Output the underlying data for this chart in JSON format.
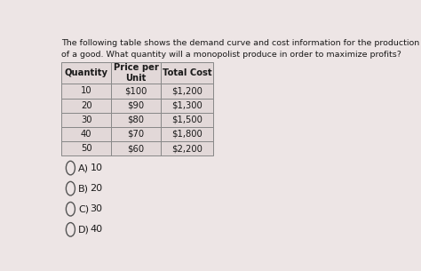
{
  "title_line1": "The following table shows the demand curve and cost information for the production",
  "title_line2": "of a good. What quantity will a monopolist produce in order to maximize profits?",
  "col_headers": [
    "Quantity",
    "Price per\nUnit",
    "Total Cost"
  ],
  "table_data": [
    [
      "10",
      "$100",
      "$1,200"
    ],
    [
      "20",
      "$90",
      "$1,300"
    ],
    [
      "30",
      "$80",
      "$1,500"
    ],
    [
      "40",
      "$70",
      "$1,800"
    ],
    [
      "50",
      "$60",
      "$2,200"
    ]
  ],
  "choices": [
    [
      "A)",
      "10"
    ],
    [
      "B)",
      "20"
    ],
    [
      "C)",
      "30"
    ],
    [
      "D)",
      "40"
    ]
  ],
  "bg_color": "#ede5e5",
  "table_bg": "#e2d8d8",
  "border_color": "#888888",
  "text_color": "#1a1a1a",
  "title_fontsize": 6.8,
  "table_fontsize": 7.2,
  "choice_fontsize": 8.0
}
